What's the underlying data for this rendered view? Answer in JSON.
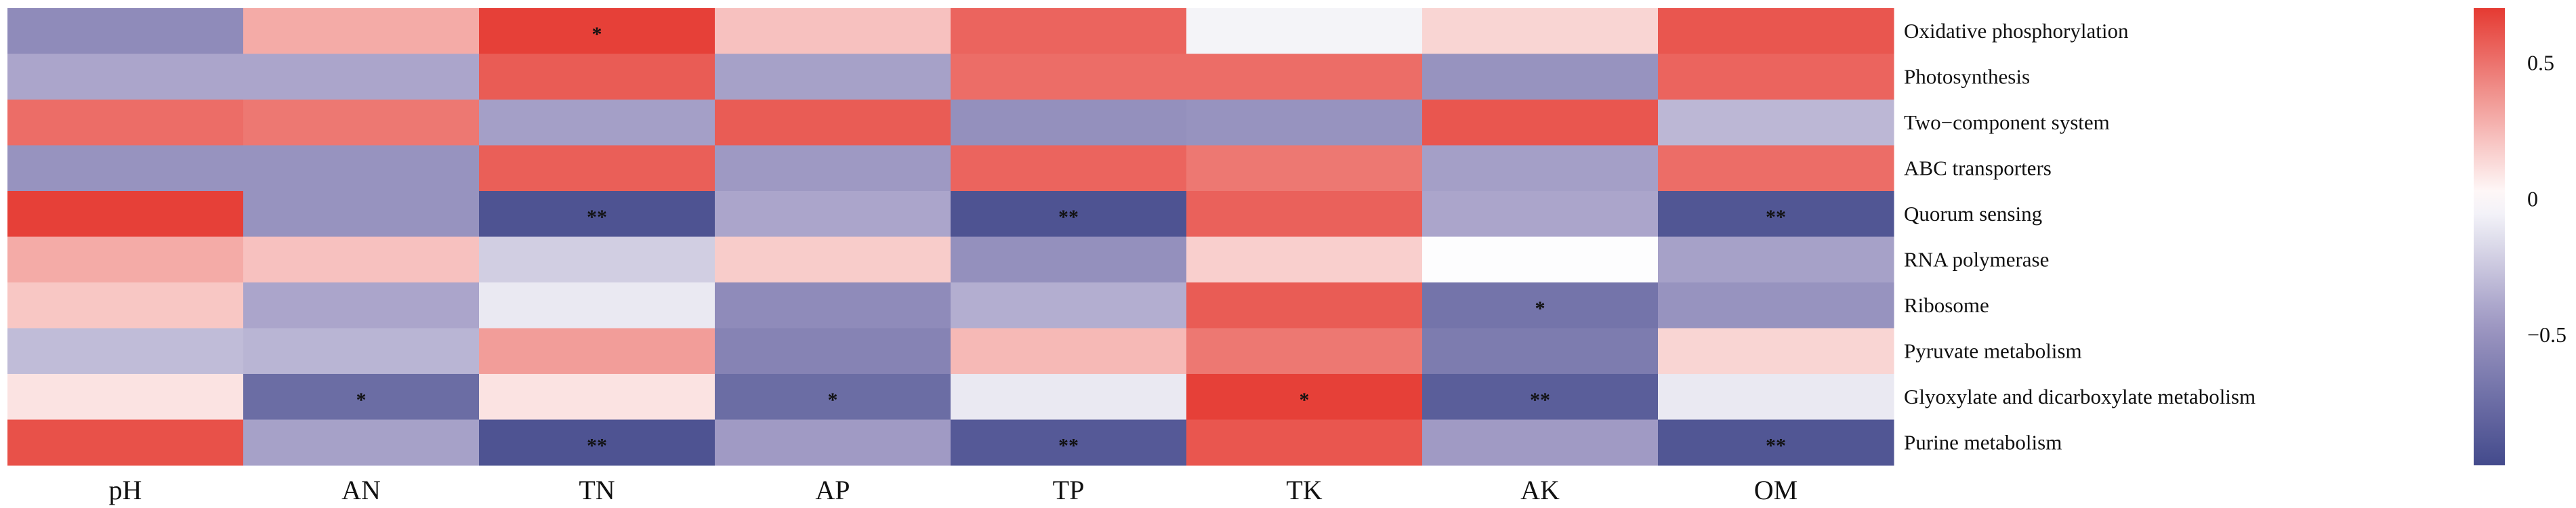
{
  "chart_data": {
    "type": "heatmap",
    "title": "",
    "columns": [
      "pH",
      "AN",
      "TN",
      "AP",
      "TP",
      "TK",
      "AK",
      "OM"
    ],
    "rows": [
      "Oxidative phosphorylation",
      "Photosynthesis",
      "Two−component system",
      "ABC transporters",
      "Quorum sensing",
      "RNA polymerase",
      "Ribosome",
      "Pyruvate metabolism",
      "Glyoxylate and dicarboxylate metabolism",
      "Purine metabolism"
    ],
    "values": [
      [
        -0.55,
        0.3,
        0.68,
        0.22,
        0.55,
        -0.05,
        0.15,
        0.6
      ],
      [
        -0.4,
        -0.4,
        0.58,
        -0.42,
        0.52,
        0.52,
        -0.5,
        0.55
      ],
      [
        0.52,
        0.48,
        -0.43,
        0.58,
        -0.52,
        -0.5,
        0.6,
        -0.32
      ],
      [
        -0.5,
        -0.5,
        0.57,
        -0.46,
        0.55,
        0.48,
        -0.43,
        0.52
      ],
      [
        0.68,
        -0.5,
        -0.92,
        -0.4,
        -0.92,
        0.56,
        -0.4,
        -0.9
      ],
      [
        0.3,
        0.22,
        -0.22,
        0.18,
        -0.52,
        0.17,
        -0.01,
        -0.42
      ],
      [
        0.2,
        -0.4,
        -0.1,
        -0.55,
        -0.36,
        0.58,
        -0.7,
        -0.5
      ],
      [
        -0.3,
        -0.33,
        0.35,
        -0.6,
        0.25,
        0.48,
        -0.65,
        0.15
      ],
      [
        0.1,
        -0.75,
        0.1,
        -0.75,
        -0.1,
        0.68,
        -0.85,
        -0.1
      ],
      [
        0.62,
        -0.42,
        -0.92,
        -0.45,
        -0.88,
        0.6,
        -0.45,
        -0.9
      ]
    ],
    "significance": [
      [
        "",
        "",
        "*",
        "",
        "",
        "",
        "",
        ""
      ],
      [
        "",
        "",
        "",
        "",
        "",
        "",
        "",
        ""
      ],
      [
        "",
        "",
        "",
        "",
        "",
        "",
        "",
        ""
      ],
      [
        "",
        "",
        "",
        "",
        "",
        "",
        "",
        ""
      ],
      [
        "",
        "",
        "**",
        "",
        "**",
        "",
        "",
        "**"
      ],
      [
        "",
        "",
        "",
        "",
        "",
        "",
        "",
        ""
      ],
      [
        "",
        "",
        "",
        "",
        "",
        "",
        "*",
        ""
      ],
      [
        "",
        "",
        "",
        "",
        "",
        "",
        "",
        ""
      ],
      [
        "",
        "*",
        "",
        "*",
        "",
        "*",
        "**",
        ""
      ],
      [
        "",
        "",
        "**",
        "",
        "**",
        "",
        "",
        "**"
      ]
    ],
    "colorbar": {
      "range": [
        -0.98,
        0.7
      ],
      "ticks": [
        0.5,
        0,
        -0.5
      ],
      "tick_labels": [
        "0.5",
        "0",
        "−0.5"
      ],
      "colors": {
        "high": "#E53A32",
        "mid": "#FFFFFF",
        "low_mid": "#A09AC4",
        "low": "#434A8C"
      }
    }
  }
}
